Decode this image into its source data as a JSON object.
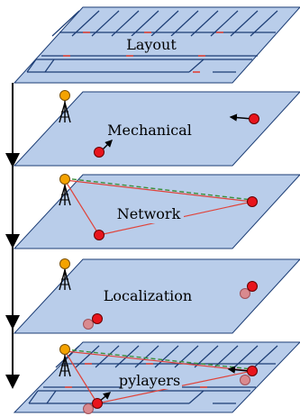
{
  "layers": [
    {
      "id": "layout",
      "label": "Layout"
    },
    {
      "id": "mechanical",
      "label": "Mechanical"
    },
    {
      "id": "network",
      "label": "Network"
    },
    {
      "id": "localization",
      "label": "Localization"
    },
    {
      "id": "pylayers",
      "label": "pylayers"
    }
  ],
  "colors": {
    "plane_fill": "#b9cdea",
    "plane_stroke": "#1c3d75",
    "wall": "#1c3d75",
    "door": "#e0433a",
    "node_red": "#e8141c",
    "node_faded": "#d98a8f",
    "antenna_orange": "#f4a300",
    "link_red": "#e0433a",
    "link_green": "#3c8f3c",
    "axis": "#000000"
  }
}
